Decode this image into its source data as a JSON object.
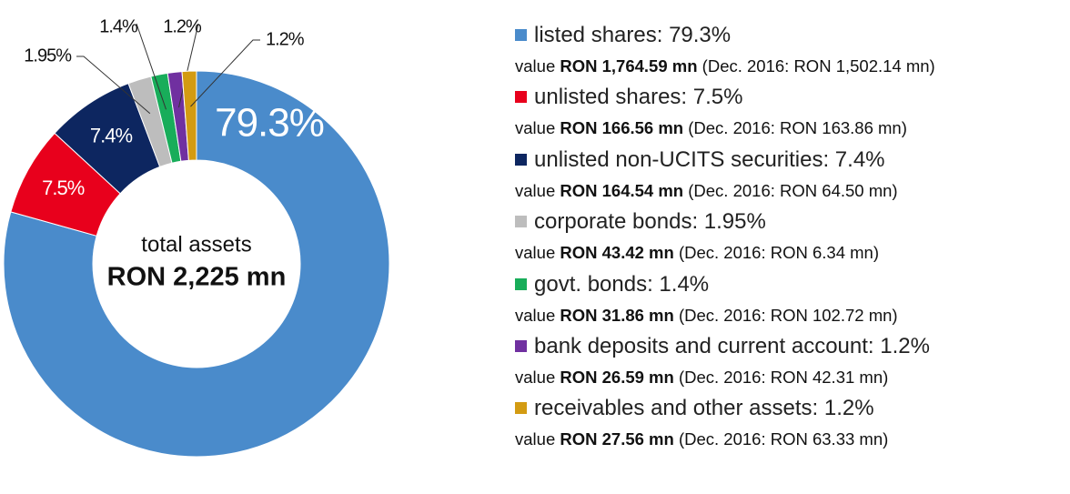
{
  "chart_data": {
    "type": "pie",
    "donut": true,
    "center_title": "total assets",
    "center_value": "RON 2,225 mn",
    "values": [
      79.3,
      7.5,
      7.4,
      1.95,
      1.4,
      1.2,
      1.2
    ],
    "value_labels": [
      "79.3%",
      "7.5%",
      "7.4%",
      "1.95%",
      "1.4%",
      "1.2%",
      "1.2%"
    ],
    "colors": [
      "#4a8bcb",
      "#e8001c",
      "#0d2660",
      "#bdbdbd",
      "#18ad5a",
      "#7030a0",
      "#d39b12"
    ],
    "legend": [
      "listed shares: 79.3%",
      "unlisted shares: 7.5%",
      "unlisted non-UCITS securities: 7.4%",
      "corporate bonds: 1.95%",
      "govt. bonds: 1.4%",
      "bank deposits and current account: 1.2%",
      "receivables and other assets: 1.2%"
    ],
    "details": [
      {
        "prefix": "value",
        "amount": "RON 1,764.59 mn",
        "note": "(Dec. 2016: RON 1,502.14 mn)"
      },
      {
        "prefix": "value",
        "amount": "RON 166.56 mn",
        "note": "(Dec. 2016: RON 163.86 mn)"
      },
      {
        "prefix": "value",
        "amount": "RON 164.54 mn",
        "note": "(Dec. 2016: RON 64.50 mn)"
      },
      {
        "prefix": "value",
        "amount": "RON 43.42 mn",
        "note": "(Dec. 2016: RON 6.34 mn)"
      },
      {
        "prefix": "value",
        "amount": "RON 31.86 mn",
        "note": "(Dec. 2016: RON 102.72 mn)"
      },
      {
        "prefix": "value",
        "amount": "RON 26.59 mn",
        "note": "(Dec. 2016: RON 42.31 mn)"
      },
      {
        "prefix": "value",
        "amount": "RON 27.56 mn",
        "note": "(Dec. 2016: RON 63.33 mn)"
      }
    ]
  }
}
